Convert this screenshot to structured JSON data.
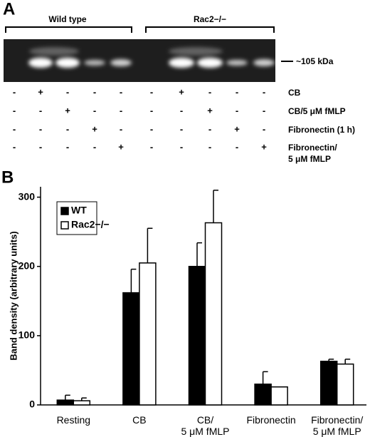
{
  "panel_a": {
    "label": "A",
    "groups": [
      "Wild type",
      "Rac2−/−"
    ],
    "marker": "~105 kDa",
    "rows": [
      {
        "label": "CB",
        "signs": [
          "-",
          "+",
          "-",
          "-",
          "-",
          "-",
          "+",
          "-",
          "-",
          "-"
        ]
      },
      {
        "label": "CB/5 μM fMLP",
        "signs": [
          "-",
          "-",
          "+",
          "-",
          "-",
          "-",
          "-",
          "+",
          "-",
          "-"
        ]
      },
      {
        "label": "Fibronectin (1 h)",
        "signs": [
          "-",
          "-",
          "-",
          "+",
          "-",
          "-",
          "-",
          "-",
          "+",
          "-"
        ]
      },
      {
        "label": "Fibronectin/\n5 μM fMLP",
        "signs": [
          "-",
          "-",
          "-",
          "-",
          "+",
          "-",
          "-",
          "-",
          "-",
          "+"
        ]
      }
    ]
  },
  "chart_data": {
    "type": "bar",
    "panel_label": "B",
    "y_label": "Band density (arbitrary units)",
    "categories": [
      "Resting",
      "CB",
      "CB/\n5 μM fMLP",
      "Fibronectin",
      "Fibronectin/\n5 μM fMLP"
    ],
    "series": [
      {
        "name": "WT",
        "color": "#000000",
        "values": [
          7,
          162,
          200,
          30,
          63
        ],
        "errors": [
          7,
          34,
          34,
          18,
          3
        ]
      },
      {
        "name": "Rac2−/−",
        "color": "#ffffff",
        "values": [
          6,
          205,
          263,
          26,
          59
        ],
        "errors": [
          4,
          50,
          47,
          0,
          7
        ]
      }
    ],
    "ylim": [
      0,
      315
    ],
    "yticks": [
      0,
      100,
      200,
      300
    ]
  }
}
